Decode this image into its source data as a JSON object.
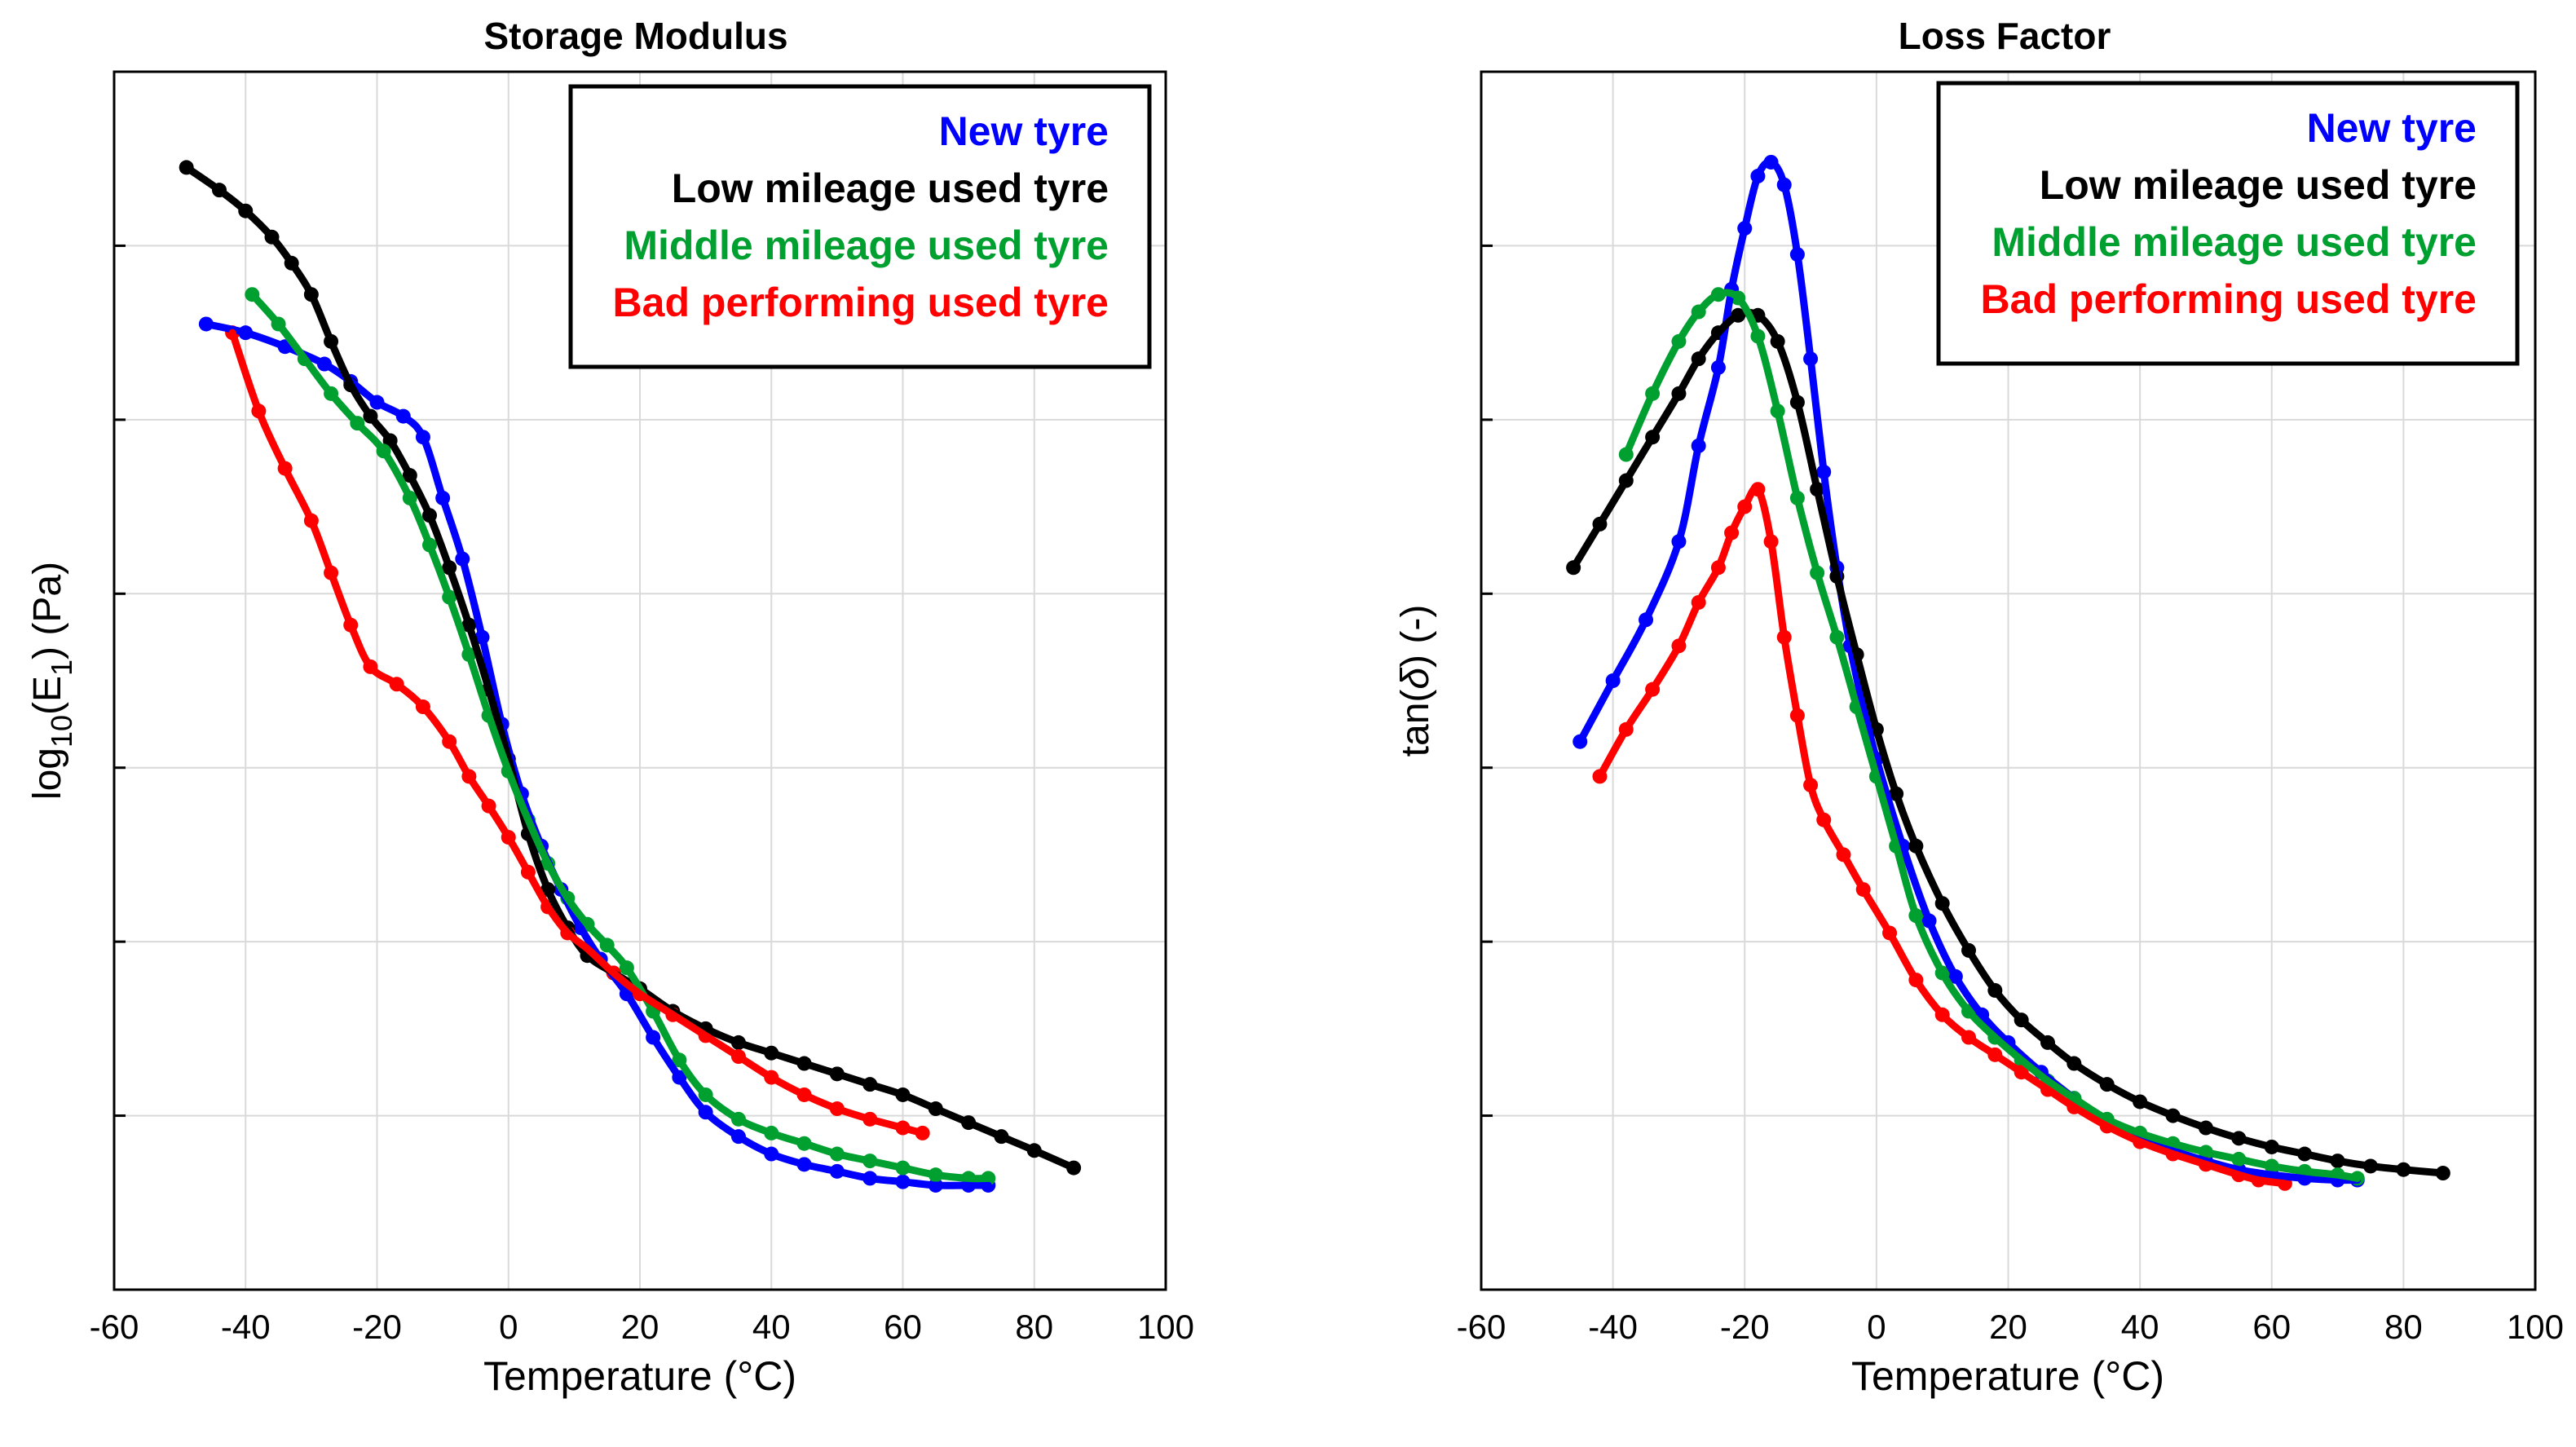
{
  "chart_data": [
    {
      "type": "scatter",
      "title": "Storage Modulus",
      "xlabel": "Temperature (°C)",
      "ylabel_parts": [
        "log",
        "10",
        "(E",
        "1",
        ") (Pa)"
      ],
      "xlim": [
        -60,
        100
      ],
      "ylim": [
        0,
        7
      ],
      "xticks": [
        -60,
        -40,
        -20,
        0,
        20,
        40,
        60,
        80,
        100
      ],
      "grid": true,
      "legend_location": "top-right",
      "series": [
        {
          "name": "New tyre",
          "color": "#0000ff",
          "x": [
            -46,
            -40,
            -34,
            -28,
            -24,
            -20,
            -16,
            -13,
            -10,
            -7,
            -4,
            -1,
            2,
            5,
            8,
            11,
            14,
            18,
            22,
            26,
            30,
            35,
            40,
            45,
            50,
            55,
            60,
            65,
            70,
            73
          ],
          "y": [
            5.55,
            5.5,
            5.42,
            5.32,
            5.22,
            5.1,
            5.02,
            4.9,
            4.55,
            4.2,
            3.75,
            3.25,
            2.85,
            2.55,
            2.3,
            2.08,
            1.9,
            1.7,
            1.45,
            1.22,
            1.02,
            0.88,
            0.78,
            0.72,
            0.68,
            0.64,
            0.62,
            0.6,
            0.6,
            0.6
          ]
        },
        {
          "name": "Low mileage used tyre",
          "color": "#000000",
          "x": [
            -49,
            -44,
            -40,
            -36,
            -33,
            -30,
            -27,
            -24,
            -21,
            -18,
            -15,
            -12,
            -9,
            -6,
            -3,
            0,
            3,
            6,
            9,
            12,
            16,
            20,
            25,
            30,
            35,
            40,
            45,
            50,
            55,
            60,
            65,
            70,
            75,
            80,
            86
          ],
          "y": [
            6.45,
            6.32,
            6.2,
            6.05,
            5.9,
            5.72,
            5.45,
            5.2,
            5.02,
            4.88,
            4.68,
            4.45,
            4.15,
            3.82,
            3.45,
            3.05,
            2.62,
            2.3,
            2.08,
            1.92,
            1.82,
            1.73,
            1.6,
            1.5,
            1.42,
            1.36,
            1.3,
            1.24,
            1.18,
            1.12,
            1.04,
            0.96,
            0.88,
            0.8,
            0.7
          ]
        },
        {
          "name": "Middle mileage used tyre",
          "color": "#00a030",
          "x": [
            -39,
            -35,
            -31,
            -27,
            -23,
            -19,
            -15,
            -12,
            -9,
            -6,
            -3,
            0,
            3,
            6,
            9,
            12,
            15,
            18,
            22,
            26,
            30,
            35,
            40,
            45,
            50,
            55,
            60,
            65,
            70,
            73
          ],
          "y": [
            5.72,
            5.55,
            5.35,
            5.15,
            4.98,
            4.82,
            4.55,
            4.28,
            3.98,
            3.65,
            3.3,
            2.98,
            2.7,
            2.45,
            2.25,
            2.1,
            1.98,
            1.85,
            1.6,
            1.32,
            1.12,
            0.98,
            0.9,
            0.84,
            0.78,
            0.74,
            0.7,
            0.66,
            0.64,
            0.64
          ]
        },
        {
          "name": "Bad performing used tyre",
          "color": "#ff0000",
          "x": [
            -42,
            -38,
            -34,
            -30,
            -27,
            -24,
            -21,
            -17,
            -13,
            -9,
            -6,
            -3,
            0,
            3,
            6,
            9,
            12,
            16,
            20,
            25,
            30,
            35,
            40,
            45,
            50,
            55,
            60,
            63
          ],
          "y": [
            5.5,
            5.05,
            4.72,
            4.42,
            4.12,
            3.82,
            3.58,
            3.48,
            3.35,
            3.15,
            2.95,
            2.78,
            2.6,
            2.4,
            2.2,
            2.05,
            1.96,
            1.82,
            1.7,
            1.58,
            1.46,
            1.34,
            1.22,
            1.12,
            1.04,
            0.98,
            0.93,
            0.9
          ]
        }
      ]
    },
    {
      "type": "scatter",
      "title": "Loss Factor",
      "xlabel": "Temperature (°C)",
      "ylabel_parts": [
        "tan(",
        "δ",
        ") (-)"
      ],
      "xlim": [
        -60,
        100
      ],
      "ylim": [
        0,
        7
      ],
      "xticks": [
        -60,
        -40,
        -20,
        0,
        20,
        40,
        60,
        80,
        100
      ],
      "grid": true,
      "legend_location": "top-right",
      "series": [
        {
          "name": "New tyre",
          "color": "#0000ff",
          "x": [
            -45,
            -40,
            -35,
            -30,
            -27,
            -24,
            -22,
            -20,
            -18,
            -16,
            -14,
            -12,
            -10,
            -8,
            -6,
            -4,
            -2,
            0,
            4,
            8,
            12,
            16,
            20,
            25,
            30,
            35,
            40,
            45,
            50,
            55,
            60,
            65,
            70,
            73
          ],
          "y": [
            3.15,
            3.5,
            3.85,
            4.3,
            4.85,
            5.3,
            5.75,
            6.1,
            6.4,
            6.48,
            6.35,
            5.95,
            5.35,
            4.7,
            4.15,
            3.7,
            3.35,
            3.05,
            2.55,
            2.12,
            1.8,
            1.58,
            1.42,
            1.25,
            1.1,
            0.97,
            0.88,
            0.8,
            0.74,
            0.69,
            0.66,
            0.64,
            0.63,
            0.63
          ]
        },
        {
          "name": "Low mileage used tyre",
          "color": "#000000",
          "x": [
            -46,
            -42,
            -38,
            -34,
            -30,
            -27,
            -24,
            -21,
            -18,
            -15,
            -12,
            -9,
            -6,
            -3,
            0,
            3,
            6,
            10,
            14,
            18,
            22,
            26,
            30,
            35,
            40,
            45,
            50,
            55,
            60,
            65,
            70,
            75,
            80,
            86
          ],
          "y": [
            4.15,
            4.4,
            4.65,
            4.9,
            5.15,
            5.35,
            5.5,
            5.6,
            5.6,
            5.45,
            5.1,
            4.6,
            4.1,
            3.65,
            3.22,
            2.85,
            2.55,
            2.22,
            1.95,
            1.72,
            1.55,
            1.42,
            1.3,
            1.18,
            1.08,
            1.0,
            0.93,
            0.87,
            0.82,
            0.78,
            0.74,
            0.71,
            0.69,
            0.67
          ]
        },
        {
          "name": "Middle mileage used tyre",
          "color": "#00a030",
          "x": [
            -38,
            -34,
            -30,
            -27,
            -24,
            -21,
            -18,
            -15,
            -12,
            -9,
            -6,
            -3,
            0,
            3,
            6,
            10,
            14,
            18,
            22,
            26,
            30,
            35,
            40,
            45,
            50,
            55,
            60,
            65,
            70,
            73
          ],
          "y": [
            4.8,
            5.15,
            5.45,
            5.62,
            5.72,
            5.7,
            5.48,
            5.05,
            4.55,
            4.12,
            3.75,
            3.35,
            2.95,
            2.55,
            2.15,
            1.82,
            1.6,
            1.45,
            1.32,
            1.2,
            1.1,
            0.98,
            0.9,
            0.84,
            0.79,
            0.75,
            0.71,
            0.68,
            0.66,
            0.64
          ]
        },
        {
          "name": "Bad performing used tyre",
          "color": "#ff0000",
          "x": [
            -42,
            -38,
            -34,
            -30,
            -27,
            -24,
            -22,
            -20,
            -18,
            -16,
            -14,
            -12,
            -10,
            -8,
            -5,
            -2,
            2,
            6,
            10,
            14,
            18,
            22,
            26,
            30,
            35,
            40,
            45,
            50,
            55,
            58,
            62
          ],
          "y": [
            2.95,
            3.22,
            3.45,
            3.7,
            3.95,
            4.15,
            4.35,
            4.5,
            4.6,
            4.3,
            3.75,
            3.3,
            2.9,
            2.7,
            2.5,
            2.3,
            2.05,
            1.78,
            1.58,
            1.45,
            1.35,
            1.25,
            1.15,
            1.05,
            0.94,
            0.85,
            0.78,
            0.72,
            0.66,
            0.63,
            0.61
          ]
        }
      ]
    }
  ]
}
